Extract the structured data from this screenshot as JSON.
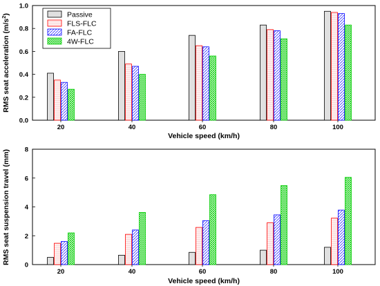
{
  "chart_data": [
    {
      "type": "bar",
      "categories": [
        "20",
        "40",
        "60",
        "80",
        "100"
      ],
      "xlabel": "Vehicle speed (km/h)",
      "ylabel": "RMS seat acceleration (m/s²)",
      "ylabel_main": "RMS seat acceleration (m/s",
      "ylabel_sup": "2",
      "ylabel_end": ")",
      "ylim": [
        0,
        1.0
      ],
      "yticks": [
        "0.0",
        "0.2",
        "0.4",
        "0.6",
        "0.8",
        "1.0"
      ],
      "legend": {
        "position": "top-left"
      },
      "series": [
        {
          "name": "Passive",
          "values": [
            0.41,
            0.6,
            0.74,
            0.83,
            0.95
          ],
          "style": "solid",
          "fill": "#e0e0e0",
          "stroke": "#000000"
        },
        {
          "name": "FLS-FLC",
          "values": [
            0.35,
            0.49,
            0.65,
            0.79,
            0.94
          ],
          "style": "light",
          "fill": "#fce8e8",
          "stroke": "#ff0000"
        },
        {
          "name": "FA-FLC",
          "values": [
            0.33,
            0.47,
            0.64,
            0.78,
            0.93
          ],
          "style": "hatch",
          "fill": "#ffffff",
          "stroke": "#0000ff"
        },
        {
          "name": "4W-FLC",
          "values": [
            0.27,
            0.4,
            0.56,
            0.71,
            0.83
          ],
          "style": "cross",
          "fill": "#ffffff",
          "stroke": "#00cc00"
        }
      ]
    },
    {
      "type": "bar",
      "categories": [
        "20",
        "40",
        "60",
        "80",
        "100"
      ],
      "xlabel": "Vehicle speed (km/h)",
      "ylabel": "RMS seat suspension travel (mm)",
      "ylim": [
        0,
        8
      ],
      "yticks": [
        "0",
        "2",
        "4",
        "6",
        "8"
      ],
      "series": [
        {
          "name": "Passive",
          "values": [
            0.5,
            0.65,
            0.85,
            1.0,
            1.2
          ],
          "style": "solid",
          "fill": "#e0e0e0",
          "stroke": "#000000"
        },
        {
          "name": "FLS-FLC",
          "values": [
            1.48,
            2.1,
            2.58,
            2.9,
            3.22
          ],
          "style": "light",
          "fill": "#fce8e8",
          "stroke": "#ff0000"
        },
        {
          "name": "FA-FLC",
          "values": [
            1.6,
            2.4,
            3.05,
            3.45,
            3.78
          ],
          "style": "hatch",
          "fill": "#ffffff",
          "stroke": "#0000ff"
        },
        {
          "name": "4W-FLC",
          "values": [
            2.2,
            3.62,
            4.85,
            5.48,
            6.05
          ],
          "style": "cross",
          "fill": "#ffffff",
          "stroke": "#00cc00"
        }
      ]
    }
  ]
}
